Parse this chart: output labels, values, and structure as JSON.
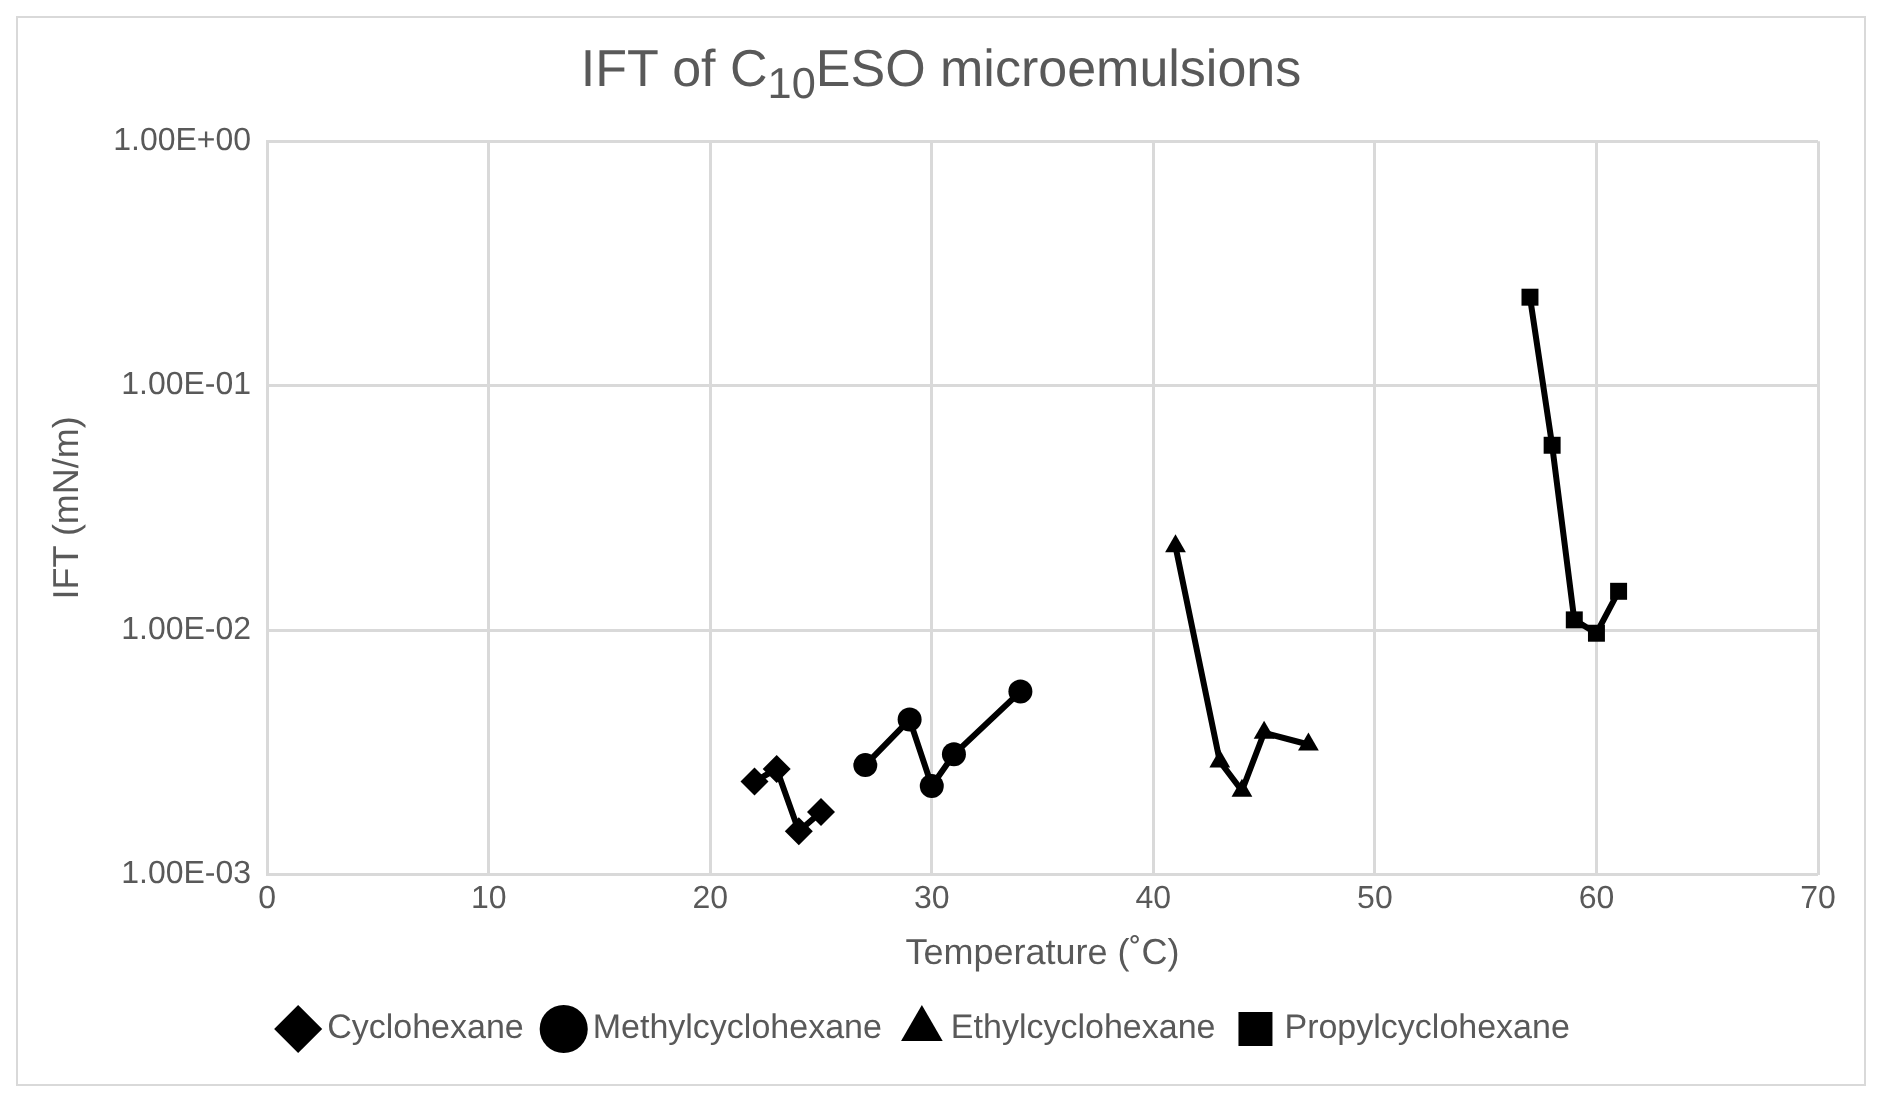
{
  "chart_data": {
    "type": "line",
    "title": "IFT of C$_{10}$ESO microemulsions",
    "xlabel": "Temperature (˚C)",
    "ylabel": "IFT (mN/m)",
    "xlim": [
      0,
      70
    ],
    "xticks": [
      0,
      10,
      20,
      30,
      40,
      50,
      60,
      70
    ],
    "ylim": [
      0.001,
      1
    ],
    "yticks": [
      {
        "value": 0.001,
        "label": "1.00E-03"
      },
      {
        "value": 0.01,
        "label": "1.00E-02"
      },
      {
        "value": 0.1,
        "label": "1.00E-01"
      },
      {
        "value": 1,
        "label": "1.00E+00"
      }
    ],
    "log": "y",
    "grid": true,
    "legend": "bottom",
    "line_style": "solid",
    "series": [
      {
        "name": "Cyclohexane",
        "color": "#000000",
        "marker": "diamond",
        "x": [
          22,
          23,
          24,
          25
        ],
        "values": [
          0.0024,
          0.0027,
          0.0015,
          0.0018
        ]
      },
      {
        "name": "Methylcyclohexane",
        "color": "#000000",
        "marker": "circle",
        "x": [
          27,
          29,
          30,
          31,
          34
        ],
        "values": [
          0.0028,
          0.0043,
          0.0023,
          0.0031,
          0.0056
        ]
      },
      {
        "name": "Ethylcyclohexane",
        "color": "#000000",
        "marker": "triangle",
        "x": [
          41,
          43,
          44,
          45,
          47
        ],
        "values": [
          0.022,
          0.0029,
          0.0022,
          0.0038,
          0.0034
        ]
      },
      {
        "name": "Propylcyclohexane",
        "color": "#000000",
        "marker": "square",
        "x": [
          57,
          58,
          59,
          60,
          61
        ],
        "values": [
          0.23,
          0.057,
          0.011,
          0.0097,
          0.0144
        ]
      }
    ]
  }
}
